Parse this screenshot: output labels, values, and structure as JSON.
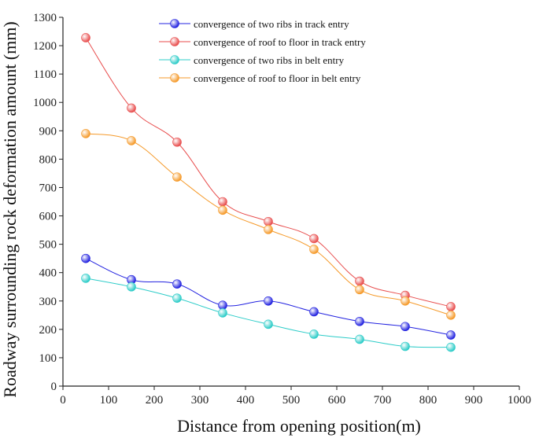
{
  "chart_data": {
    "type": "line",
    "title": "",
    "xlabel": "Distance from opening position(m)",
    "ylabel": "Roadway surrounding rock deformation amount (mm)",
    "xlim": [
      0,
      1000
    ],
    "ylim": [
      0,
      1300
    ],
    "xticks": [
      0,
      100,
      200,
      300,
      400,
      500,
      600,
      700,
      800,
      900,
      1000
    ],
    "yticks": [
      0,
      100,
      200,
      300,
      400,
      500,
      600,
      700,
      800,
      900,
      1000,
      1100,
      1200,
      1300
    ],
    "x": [
      50,
      150,
      250,
      350,
      450,
      550,
      650,
      750,
      850
    ],
    "grid": false,
    "legend_position": "top-center",
    "series": [
      {
        "name": "convergence of two ribs in track entry",
        "color": "#2323e0",
        "values": [
          450,
          375,
          360,
          285,
          300,
          262,
          228,
          210,
          180
        ]
      },
      {
        "name": "convergence of roof to floor in track entry",
        "color": "#e84d4d",
        "values": [
          1228,
          980,
          860,
          650,
          580,
          520,
          370,
          320,
          280
        ]
      },
      {
        "name": "convergence of two ribs in belt entry",
        "color": "#2cccc8",
        "values": [
          380,
          350,
          310,
          258,
          218,
          183,
          165,
          140,
          137
        ]
      },
      {
        "name": "convergence of  roof to floor in belt entry",
        "color": "#f59a2a",
        "values": [
          890,
          865,
          737,
          620,
          552,
          482,
          340,
          300,
          250
        ]
      }
    ]
  }
}
